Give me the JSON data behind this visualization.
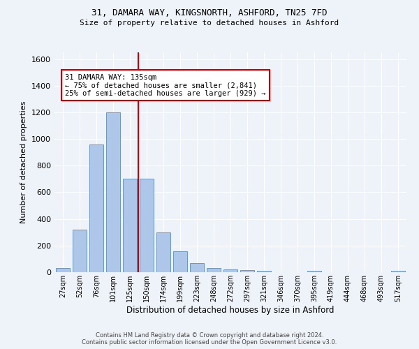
{
  "title1": "31, DAMARA WAY, KINGSNORTH, ASHFORD, TN25 7FD",
  "title2": "Size of property relative to detached houses in Ashford",
  "xlabel": "Distribution of detached houses by size in Ashford",
  "ylabel": "Number of detached properties",
  "categories": [
    "27sqm",
    "52sqm",
    "76sqm",
    "101sqm",
    "125sqm",
    "150sqm",
    "174sqm",
    "199sqm",
    "223sqm",
    "248sqm",
    "272sqm",
    "297sqm",
    "321sqm",
    "346sqm",
    "370sqm",
    "395sqm",
    "419sqm",
    "444sqm",
    "468sqm",
    "493sqm",
    "517sqm"
  ],
  "values": [
    30,
    320,
    960,
    1200,
    700,
    700,
    300,
    155,
    70,
    30,
    20,
    15,
    10,
    0,
    0,
    10,
    0,
    0,
    0,
    0,
    10
  ],
  "bar_color": "#aec6e8",
  "bar_edge_color": "#5b8db8",
  "vline_x": 4.5,
  "vline_color": "#cc0000",
  "annotation_text": "31 DAMARA WAY: 135sqm\n← 75% of detached houses are smaller (2,841)\n25% of semi-detached houses are larger (929) →",
  "annotation_box_color": "white",
  "annotation_box_edge": "#cc0000",
  "ylim": [
    0,
    1650
  ],
  "yticks": [
    0,
    200,
    400,
    600,
    800,
    1000,
    1200,
    1400,
    1600
  ],
  "footer1": "Contains HM Land Registry data © Crown copyright and database right 2024.",
  "footer2": "Contains public sector information licensed under the Open Government Licence v3.0.",
  "bg_color": "#eef2f9",
  "grid_color": "white",
  "bar_width": 0.85
}
